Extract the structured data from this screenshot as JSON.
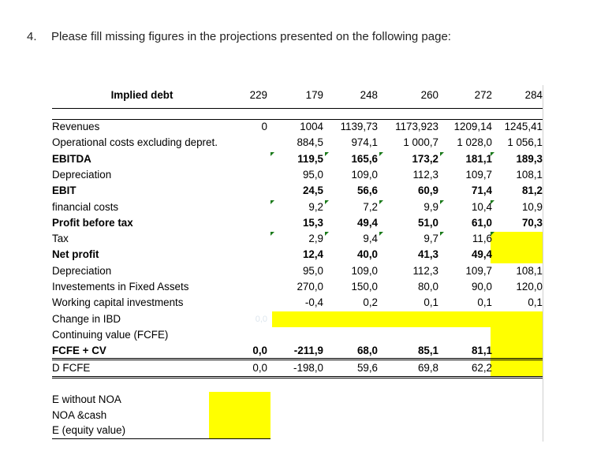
{
  "question": {
    "number": "4.",
    "text": "Please fill missing figures in the projections presented on the following page:"
  },
  "header": {
    "label": "Implied debt",
    "values": [
      "229",
      "179",
      "248",
      "260",
      "272",
      "284"
    ]
  },
  "rows": [
    {
      "label": "Revenues",
      "bold": false,
      "values": [
        "0",
        "1004",
        "1139,73",
        "1173,923",
        "1209,14",
        "1245,41"
      ]
    },
    {
      "label": "Operational costs excluding depret.",
      "bold": false,
      "values": [
        "",
        "884,5",
        "974,1",
        "1 000,7",
        "1 028,0",
        "1 056,1"
      ]
    },
    {
      "label": "EBITDA",
      "bold": true,
      "flag": true,
      "values": [
        "",
        "119,5",
        "165,6",
        "173,2",
        "181,1",
        "189,3"
      ]
    },
    {
      "label": "Depreciation",
      "bold": false,
      "values": [
        "",
        "95,0",
        "109,0",
        "112,3",
        "109,7",
        "108,1"
      ]
    },
    {
      "label": "EBIT",
      "bold": true,
      "values": [
        "",
        "24,5",
        "56,6",
        "60,9",
        "71,4",
        "81,2"
      ]
    },
    {
      "label": "financial costs",
      "bold": false,
      "flag": true,
      "values": [
        "",
        "9,2",
        "7,2",
        "9,9",
        "10,4",
        "10,9"
      ]
    },
    {
      "label": "Profit before tax",
      "bold": true,
      "values": [
        "",
        "15,3",
        "49,4",
        "51,0",
        "61,0",
        "70,3"
      ]
    },
    {
      "label": "Tax",
      "bold": false,
      "flag": true,
      "values": [
        "",
        "2,9",
        "9,4",
        "9,7",
        "11,6",
        ""
      ]
    },
    {
      "label": "Net profit",
      "bold": true,
      "values": [
        "",
        "12,4",
        "40,0",
        "41,3",
        "49,4",
        ""
      ]
    },
    {
      "label": "Depreciation",
      "bold": false,
      "values": [
        "",
        "95,0",
        "109,0",
        "112,3",
        "109,7",
        "108,1"
      ]
    },
    {
      "label": "Investements in Fixed Assets",
      "bold": false,
      "values": [
        "",
        "270,0",
        "150,0",
        "80,0",
        "90,0",
        "120,0"
      ]
    },
    {
      "label": "Working capital investments",
      "bold": false,
      "values": [
        "",
        "-0,4",
        "0,2",
        "0,1",
        "0,1",
        "0,1"
      ]
    },
    {
      "label": "Change in IBD",
      "bold": false,
      "values": [
        "0,0",
        "",
        "",
        "",
        "",
        ""
      ],
      "faint_first": true
    },
    {
      "label": "Continuing value (FCFE)",
      "bold": false,
      "values": [
        "",
        "",
        "",
        "",
        "",
        ""
      ]
    },
    {
      "label": "FCFE + CV",
      "bold": true,
      "values": [
        "0,0",
        "-211,9",
        "68,0",
        "85,1",
        "81,1",
        ""
      ]
    },
    {
      "label": "D FCFE",
      "bold": false,
      "values": [
        "0,0",
        "-198,0",
        "59,6",
        "69,8",
        "62,2",
        ""
      ]
    }
  ],
  "summary": [
    "E without NOA",
    "NOA &cash",
    "E (equity value)"
  ],
  "colors": {
    "highlight": "#ffff00",
    "flag": "#1a7a1a"
  }
}
